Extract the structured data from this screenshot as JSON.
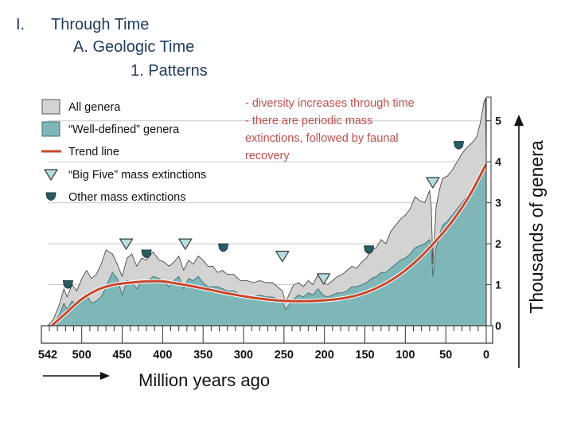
{
  "slide": {
    "outline_num": "I.",
    "outline_l1": "Through Time",
    "outline_l2": "A. Geologic Time",
    "outline_l3": "1. Patterns",
    "notes": [
      "- diversity increases through time",
      "- there are periodic mass",
      "extinctions, followed by faunal",
      "recovery"
    ]
  },
  "colors": {
    "all_genera": "#d3d3d4",
    "well_defined": "#7fb7b8",
    "trend": "#c8462c",
    "big_five": "#b9dcdc",
    "other_ext": "#2a5c62",
    "outline_text": "#1f3a5f",
    "notes_text": "#c0504d"
  },
  "chart_data": {
    "type": "area",
    "xlabel": "Million years ago",
    "ylabel": "Thousands of genera",
    "xlim": [
      542,
      0
    ],
    "ylim": [
      0,
      5.5
    ],
    "x_ticks": [
      542,
      500,
      450,
      400,
      350,
      300,
      250,
      200,
      150,
      100,
      50,
      0
    ],
    "y_ticks": [
      0,
      1,
      2,
      3,
      4,
      5
    ],
    "legend": [
      {
        "key": "all",
        "label": "All genera"
      },
      {
        "key": "well",
        "label": "“Well-defined” genera"
      },
      {
        "key": "trend",
        "label": "Trend line"
      },
      {
        "key": "big5",
        "label": "“Big Five” mass extinctions"
      },
      {
        "key": "other",
        "label": "Other mass extinctions"
      }
    ],
    "series": [
      {
        "name": "All genera",
        "x": [
          542,
          535,
          528,
          522,
          518,
          512,
          506,
          500,
          494,
          488,
          482,
          476,
          470,
          462,
          456,
          450,
          444,
          438,
          432,
          426,
          420,
          412,
          404,
          398,
          392,
          386,
          380,
          374,
          368,
          362,
          356,
          350,
          344,
          338,
          332,
          326,
          320,
          312,
          304,
          296,
          288,
          280,
          272,
          264,
          258,
          252,
          248,
          244,
          238,
          232,
          226,
          220,
          214,
          208,
          202,
          196,
          190,
          184,
          178,
          172,
          166,
          160,
          154,
          148,
          142,
          136,
          130,
          124,
          118,
          112,
          106,
          100,
          94,
          88,
          82,
          76,
          70,
          68,
          66,
          62,
          58,
          54,
          48,
          42,
          36,
          30,
          24,
          18,
          12,
          8,
          5,
          3,
          1,
          0
        ],
        "values": [
          0.0,
          0.15,
          0.5,
          0.9,
          0.7,
          1.0,
          0.85,
          1.15,
          1.35,
          1.15,
          1.25,
          1.5,
          1.85,
          1.75,
          1.5,
          1.2,
          1.65,
          1.75,
          1.45,
          1.65,
          1.6,
          1.8,
          1.6,
          1.55,
          1.45,
          1.55,
          1.7,
          1.35,
          1.6,
          1.5,
          1.7,
          1.6,
          1.45,
          1.45,
          1.3,
          1.35,
          1.25,
          1.25,
          1.1,
          1.1,
          1.05,
          1.1,
          1.05,
          1.05,
          0.95,
          0.85,
          0.55,
          0.75,
          1.0,
          1.05,
          0.95,
          1.1,
          1.0,
          1.25,
          1.05,
          1.0,
          1.1,
          1.2,
          1.25,
          1.35,
          1.45,
          1.4,
          1.55,
          1.65,
          1.85,
          1.9,
          2.1,
          2.0,
          2.3,
          2.45,
          2.6,
          2.7,
          2.85,
          3.15,
          3.05,
          3.0,
          3.3,
          2.9,
          1.5,
          2.9,
          3.3,
          3.6,
          3.65,
          3.8,
          4.0,
          4.2,
          4.35,
          4.45,
          4.6,
          4.9,
          5.2,
          5.45,
          5.55,
          4.1
        ]
      },
      {
        "name": "Well-defined genera",
        "x": [
          542,
          535,
          528,
          522,
          518,
          512,
          506,
          500,
          494,
          488,
          482,
          476,
          470,
          462,
          456,
          450,
          444,
          438,
          432,
          426,
          420,
          412,
          404,
          398,
          392,
          386,
          380,
          374,
          368,
          362,
          356,
          350,
          344,
          338,
          332,
          326,
          320,
          312,
          304,
          296,
          288,
          280,
          272,
          264,
          258,
          252,
          248,
          244,
          238,
          232,
          226,
          220,
          214,
          208,
          202,
          196,
          190,
          184,
          178,
          172,
          166,
          160,
          154,
          148,
          142,
          136,
          130,
          124,
          118,
          112,
          106,
          100,
          94,
          88,
          82,
          76,
          70,
          68,
          66,
          62,
          58,
          54,
          48,
          42,
          36,
          30,
          24,
          18,
          12,
          8,
          5,
          3,
          1,
          0
        ],
        "values": [
          0.0,
          0.05,
          0.25,
          0.55,
          0.4,
          0.6,
          0.5,
          0.65,
          0.75,
          0.55,
          0.6,
          0.7,
          0.95,
          1.3,
          1.15,
          0.75,
          1.1,
          1.05,
          0.9,
          1.1,
          1.05,
          1.2,
          1.15,
          1.05,
          0.95,
          1.1,
          1.2,
          0.9,
          1.15,
          1.1,
          1.2,
          1.05,
          0.95,
          0.95,
          0.95,
          0.9,
          0.85,
          0.85,
          0.75,
          0.75,
          0.7,
          0.75,
          0.7,
          0.7,
          0.65,
          0.6,
          0.4,
          0.5,
          0.65,
          0.75,
          0.7,
          0.8,
          0.75,
          0.9,
          0.75,
          0.7,
          0.75,
          0.8,
          0.8,
          0.85,
          0.95,
          0.95,
          1.0,
          1.05,
          1.15,
          1.2,
          1.3,
          1.3,
          1.4,
          1.5,
          1.6,
          1.65,
          1.75,
          1.9,
          1.95,
          2.0,
          2.1,
          1.9,
          1.2,
          1.9,
          2.2,
          2.45,
          2.55,
          2.7,
          2.85,
          3.0,
          3.15,
          3.25,
          3.45,
          3.6,
          3.75,
          3.85,
          3.9,
          3.9
        ]
      },
      {
        "name": "Trend line",
        "x": [
          537,
          520,
          500,
          480,
          460,
          440,
          420,
          400,
          380,
          360,
          340,
          320,
          300,
          280,
          260,
          240,
          220,
          200,
          180,
          160,
          140,
          120,
          100,
          80,
          60,
          40,
          20,
          0
        ],
        "values": [
          0.0,
          0.3,
          0.65,
          0.88,
          1.0,
          1.05,
          1.08,
          1.08,
          1.02,
          0.95,
          0.87,
          0.79,
          0.72,
          0.66,
          0.62,
          0.6,
          0.6,
          0.62,
          0.66,
          0.74,
          0.88,
          1.08,
          1.35,
          1.7,
          2.12,
          2.6,
          3.2,
          3.95
        ]
      }
    ],
    "mass_extinctions": {
      "big_five": [
        {
          "x": 445,
          "y": 2.0
        },
        {
          "x": 372,
          "y": 2.0
        },
        {
          "x": 252,
          "y": 1.7
        },
        {
          "x": 201,
          "y": 1.15
        },
        {
          "x": 66,
          "y": 3.5
        }
      ],
      "other": [
        {
          "x": 517,
          "y": 1.0
        },
        {
          "x": 420,
          "y": 1.75
        },
        {
          "x": 325,
          "y": 1.9
        },
        {
          "x": 145,
          "y": 1.85
        },
        {
          "x": 34,
          "y": 4.4
        }
      ]
    }
  }
}
